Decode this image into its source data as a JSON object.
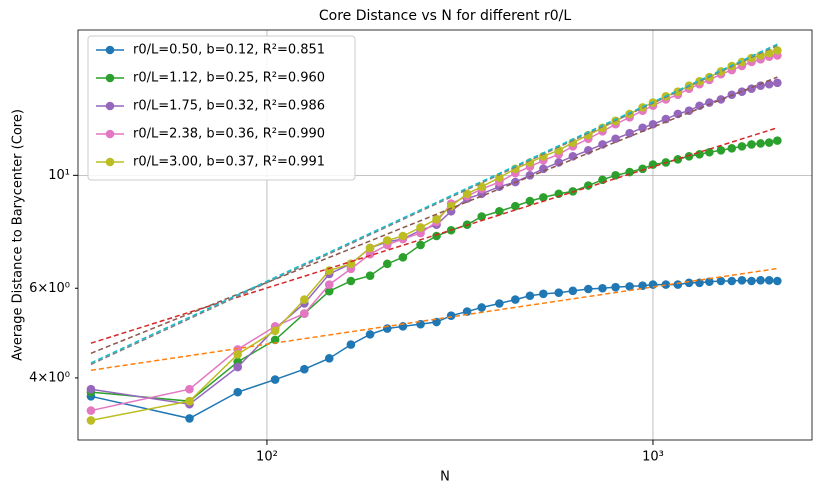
{
  "chart_data": {
    "type": "line",
    "title": "Core Distance vs N for different r0/L",
    "xlabel": "N",
    "ylabel": "Average Distance to Barycenter (Core)",
    "xlog": true,
    "ylog": true,
    "grid": true,
    "legend": "upper left",
    "xlim": [
      32.4,
      2582
    ],
    "ylim": [
      3.02,
      19.3
    ],
    "xticks": [
      {
        "value": 100,
        "label": "10²"
      },
      {
        "value": 1000,
        "label": "10³"
      }
    ],
    "yticks": [
      {
        "value": 10,
        "label": "10¹"
      }
    ],
    "yminorticks": [
      {
        "value": 4,
        "label": "4×10⁰"
      },
      {
        "value": 6,
        "label": "6×10⁰"
      }
    ],
    "x": [
      35,
      63,
      84,
      105,
      125,
      145,
      165,
      185,
      205,
      225,
      250,
      275,
      300,
      330,
      360,
      400,
      440,
      480,
      520,
      570,
      620,
      680,
      740,
      800,
      870,
      940,
      1000,
      1080,
      1160,
      1240,
      1320,
      1400,
      1500,
      1600,
      1700,
      1800,
      1900,
      2000,
      2100
    ],
    "series": [
      {
        "name": "r0/L=0.50, b=0.12, R²=0.851",
        "color": "#1f77b4",
        "values": [
          3.68,
          3.33,
          3.75,
          3.97,
          4.16,
          4.37,
          4.65,
          4.87,
          5.0,
          5.05,
          5.1,
          5.15,
          5.3,
          5.4,
          5.5,
          5.6,
          5.7,
          5.8,
          5.85,
          5.88,
          5.93,
          5.98,
          6.0,
          6.03,
          6.05,
          6.07,
          6.1,
          6.1,
          6.1,
          6.15,
          6.15,
          6.18,
          6.2,
          6.2,
          6.22,
          6.2,
          6.22,
          6.22,
          6.2
        ]
      },
      {
        "name": "r0/L=1.12, b=0.25, R²=0.960",
        "color": "#2ca02c",
        "values": [
          3.75,
          3.6,
          4.3,
          4.75,
          5.35,
          5.92,
          6.2,
          6.35,
          6.7,
          6.9,
          7.3,
          7.6,
          7.8,
          8.0,
          8.3,
          8.5,
          8.7,
          8.9,
          9.05,
          9.2,
          9.3,
          9.55,
          9.8,
          10.0,
          10.15,
          10.3,
          10.5,
          10.6,
          10.75,
          10.9,
          11.0,
          11.1,
          11.2,
          11.3,
          11.4,
          11.5,
          11.55,
          11.6,
          11.7
        ]
      },
      {
        "name": "r0/L=1.75, b=0.32, R²=0.986",
        "color": "#9467bd",
        "values": [
          3.8,
          3.55,
          4.2,
          5.0,
          5.6,
          6.4,
          6.7,
          7.2,
          7.4,
          7.5,
          7.8,
          8.0,
          8.5,
          9.0,
          9.2,
          9.5,
          9.7,
          10.0,
          10.3,
          10.6,
          10.9,
          11.2,
          11.5,
          11.8,
          12.1,
          12.4,
          12.6,
          12.9,
          13.2,
          13.4,
          13.7,
          13.9,
          14.1,
          14.4,
          14.6,
          14.8,
          15.0,
          15.1,
          15.2
        ]
      },
      {
        "name": "r0/L=2.38, b=0.36, R²=0.990",
        "color": "#e377c2",
        "values": [
          3.45,
          3.8,
          4.55,
          5.05,
          5.35,
          6.1,
          6.55,
          7.0,
          7.3,
          7.5,
          7.7,
          8.1,
          8.8,
          9.1,
          9.4,
          9.7,
          10.1,
          10.4,
          10.7,
          11.0,
          11.4,
          11.8,
          12.2,
          12.6,
          13.0,
          13.4,
          13.7,
          14.1,
          14.4,
          14.8,
          15.1,
          15.4,
          15.8,
          16.1,
          16.4,
          16.7,
          16.9,
          17.1,
          17.2
        ]
      },
      {
        "name": "r0/L=3.00, b=0.37, R²=0.991",
        "color": "#bcbd22",
        "values": [
          3.3,
          3.6,
          4.45,
          4.95,
          5.7,
          6.5,
          6.7,
          7.2,
          7.45,
          7.6,
          7.9,
          8.2,
          8.7,
          9.2,
          9.5,
          9.9,
          10.3,
          10.6,
          10.9,
          11.2,
          11.6,
          12.0,
          12.4,
          12.8,
          13.2,
          13.6,
          13.9,
          14.3,
          14.6,
          15.0,
          15.3,
          15.6,
          16.0,
          16.4,
          16.7,
          17.0,
          17.2,
          17.4,
          17.6
        ]
      }
    ],
    "fit_x": [
      35,
      2100
    ],
    "fits": [
      {
        "color": "#ff7f0e",
        "values": [
          4.14,
          6.56
        ]
      },
      {
        "color": "#d62728",
        "values": [
          4.68,
          12.4
        ]
      },
      {
        "color": "#8c564b",
        "values": [
          4.47,
          15.6
        ]
      },
      {
        "color": "#7f7f7f",
        "values": [
          4.25,
          18.0
        ]
      },
      {
        "color": "#17becf",
        "values": [
          4.28,
          18.1
        ]
      }
    ]
  }
}
